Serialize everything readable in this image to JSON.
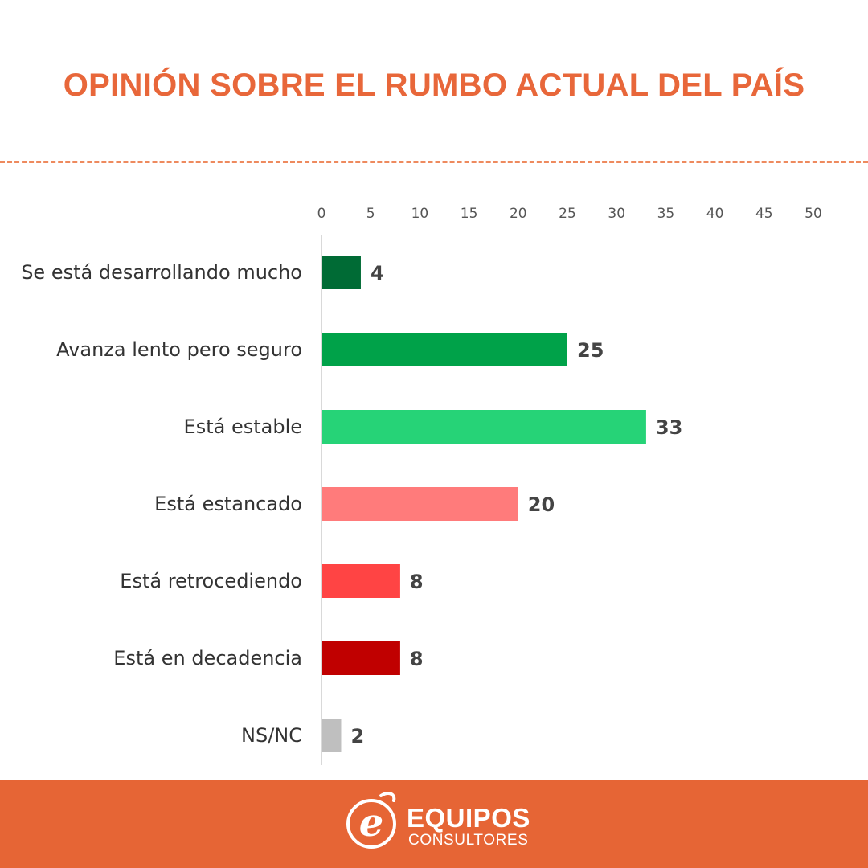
{
  "header": {
    "title": "OPINIÓN SOBRE EL RUMBO ACTUAL DEL PAÍS"
  },
  "chart_data": {
    "type": "bar",
    "orientation": "horizontal",
    "categories": [
      "Se está desarrollando mucho",
      "Avanza lento pero seguro",
      "Está estable",
      "Está estancado",
      "Está retrocediendo",
      "Está en decadencia",
      "NS/NC"
    ],
    "values": [
      4,
      25,
      33,
      20,
      8,
      8,
      2
    ],
    "colors": [
      "#006b35",
      "#00a249",
      "#26d377",
      "#ff7b7b",
      "#ff4444",
      "#c00000",
      "#bfbfbf"
    ],
    "xlim": [
      0,
      50
    ],
    "xticks": [
      0,
      5,
      10,
      15,
      20,
      25,
      30,
      35,
      40,
      45,
      50
    ],
    "axis_position": "top",
    "grid": false,
    "data_labels": true
  },
  "footer": {
    "brand_main": "EQUIPOS",
    "brand_sub": "CONSULTORES",
    "logo_letter": "e",
    "background_color": "#e66535"
  }
}
